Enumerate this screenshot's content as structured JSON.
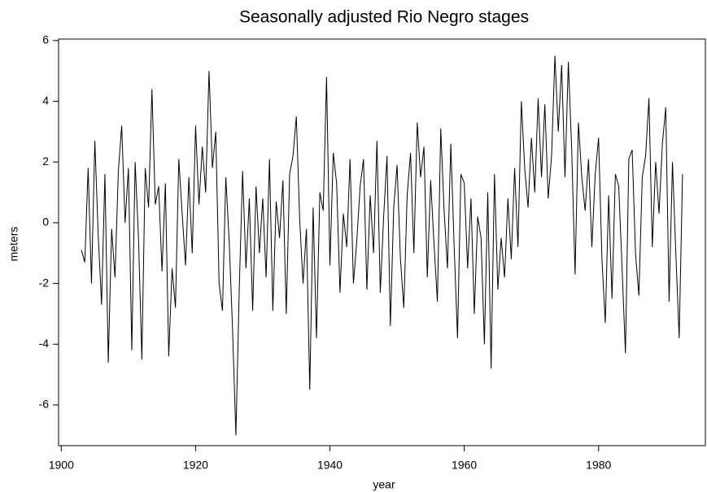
{
  "chart_data": {
    "type": "line",
    "title": "Seasonally adjusted Rio Negro stages",
    "x_label": "year",
    "y_label": "meters",
    "x": [
      1903,
      1903.5,
      1904,
      1904.5,
      1905,
      1905.5,
      1906,
      1906.5,
      1907,
      1907.5,
      1908,
      1908.5,
      1909,
      1909.5,
      1910,
      1910.5,
      1911,
      1911.5,
      1912,
      1912.5,
      1913,
      1913.5,
      1914,
      1914.5,
      1915,
      1915.5,
      1916,
      1916.5,
      1917,
      1917.5,
      1918,
      1918.5,
      1919,
      1919.5,
      1920,
      1920.5,
      1921,
      1921.5,
      1922,
      1922.5,
      1923,
      1923.5,
      1924,
      1924.5,
      1925,
      1925.5,
      1926,
      1926.5,
      1927,
      1927.5,
      1928,
      1928.5,
      1929,
      1929.5,
      1930,
      1930.5,
      1931,
      1931.5,
      1932,
      1932.5,
      1933,
      1933.5,
      1934,
      1934.5,
      1935,
      1935.5,
      1936,
      1936.5,
      1937,
      1937.5,
      1938,
      1938.5,
      1939,
      1939.5,
      1940,
      1940.5,
      1941,
      1941.5,
      1942,
      1942.5,
      1943,
      1943.5,
      1944,
      1944.5,
      1945,
      1945.5,
      1946,
      1946.5,
      1947,
      1947.5,
      1948,
      1948.5,
      1949,
      1949.5,
      1950,
      1950.5,
      1951,
      1951.5,
      1952,
      1952.5,
      1953,
      1953.5,
      1954,
      1954.5,
      1955,
      1955.5,
      1956,
      1956.5,
      1957,
      1957.5,
      1958,
      1958.5,
      1959,
      1959.5,
      1960,
      1960.5,
      1961,
      1961.5,
      1962,
      1962.5,
      1963,
      1963.5,
      1964,
      1964.5,
      1965,
      1965.5,
      1966,
      1966.5,
      1967,
      1967.5,
      1968,
      1968.5,
      1969,
      1969.5,
      1970,
      1970.5,
      1971,
      1971.5,
      1972,
      1972.5,
      1973,
      1973.5,
      1974,
      1974.5,
      1975,
      1975.5,
      1976,
      1976.5,
      1977,
      1977.5,
      1978,
      1978.5,
      1979,
      1979.5,
      1980,
      1980.5,
      1981,
      1981.5,
      1982,
      1982.5,
      1983,
      1983.5,
      1984,
      1984.5,
      1985,
      1985.5,
      1986,
      1986.5,
      1987,
      1987.5,
      1988,
      1988.5,
      1989,
      1989.5,
      1990,
      1990.5,
      1991,
      1991.5,
      1992,
      1992.5
    ],
    "series": [
      {
        "name": "stage",
        "color": "#000000",
        "values": [
          -0.9,
          -1.3,
          1.8,
          -2.0,
          2.7,
          -0.4,
          -2.7,
          1.6,
          -4.6,
          -0.2,
          -1.8,
          1.7,
          3.2,
          0.0,
          1.8,
          -4.2,
          2.0,
          -0.5,
          -4.5,
          1.8,
          0.5,
          4.4,
          0.6,
          1.2,
          -1.6,
          1.3,
          -4.4,
          -1.5,
          -2.8,
          2.1,
          0.3,
          -1.4,
          1.5,
          -1.0,
          3.2,
          0.6,
          2.5,
          1.0,
          5.0,
          1.8,
          3.0,
          -2.0,
          -2.9,
          1.5,
          -0.6,
          -3.5,
          -7.0,
          -2.2,
          1.7,
          -1.5,
          0.8,
          -2.9,
          1.2,
          -1.0,
          0.8,
          -1.8,
          2.1,
          -2.9,
          0.7,
          -0.5,
          1.4,
          -3.0,
          1.6,
          2.2,
          3.5,
          0.1,
          -2.0,
          -0.2,
          -5.5,
          0.5,
          -3.8,
          1.0,
          0.4,
          4.8,
          -1.4,
          2.3,
          1.3,
          -2.3,
          0.3,
          -0.8,
          2.1,
          -2.0,
          -0.6,
          1.2,
          2.1,
          -2.2,
          0.9,
          -1.0,
          2.7,
          -2.3,
          0.2,
          2.2,
          -3.4,
          0.5,
          1.9,
          -1.2,
          -2.8,
          0.9,
          2.3,
          -1.0,
          3.3,
          1.5,
          2.5,
          -1.8,
          1.4,
          -0.7,
          -2.6,
          3.1,
          0.4,
          -1.5,
          2.6,
          -0.8,
          -3.8,
          1.6,
          1.3,
          -1.5,
          0.8,
          -3.0,
          0.2,
          -0.5,
          -4.0,
          1.0,
          -4.8,
          1.6,
          -2.2,
          -0.5,
          -1.8,
          0.8,
          -1.2,
          1.8,
          -0.8,
          4.0,
          1.8,
          0.5,
          2.8,
          1.0,
          4.1,
          1.5,
          3.9,
          0.8,
          2.2,
          5.5,
          3.0,
          5.2,
          1.5,
          5.3,
          2.4,
          -1.7,
          3.3,
          1.5,
          0.4,
          2.1,
          -0.8,
          1.6,
          2.8,
          -1.2,
          -3.3,
          0.9,
          -2.5,
          1.6,
          1.2,
          -1.5,
          -4.3,
          2.1,
          2.4,
          -1.0,
          -2.4,
          1.5,
          2.2,
          4.1,
          -0.8,
          2.0,
          0.3,
          2.6,
          3.8,
          -2.6,
          2.0,
          -1.0,
          -3.8,
          1.6
        ]
      }
    ],
    "xlim": [
      1899.6,
      1995.9
    ],
    "ylim": [
      -7.34,
      6.05
    ],
    "xticks": [
      1900,
      1920,
      1940,
      1960,
      1980
    ],
    "yticks": [
      -6,
      -4,
      -2,
      0,
      2,
      4,
      6
    ]
  }
}
